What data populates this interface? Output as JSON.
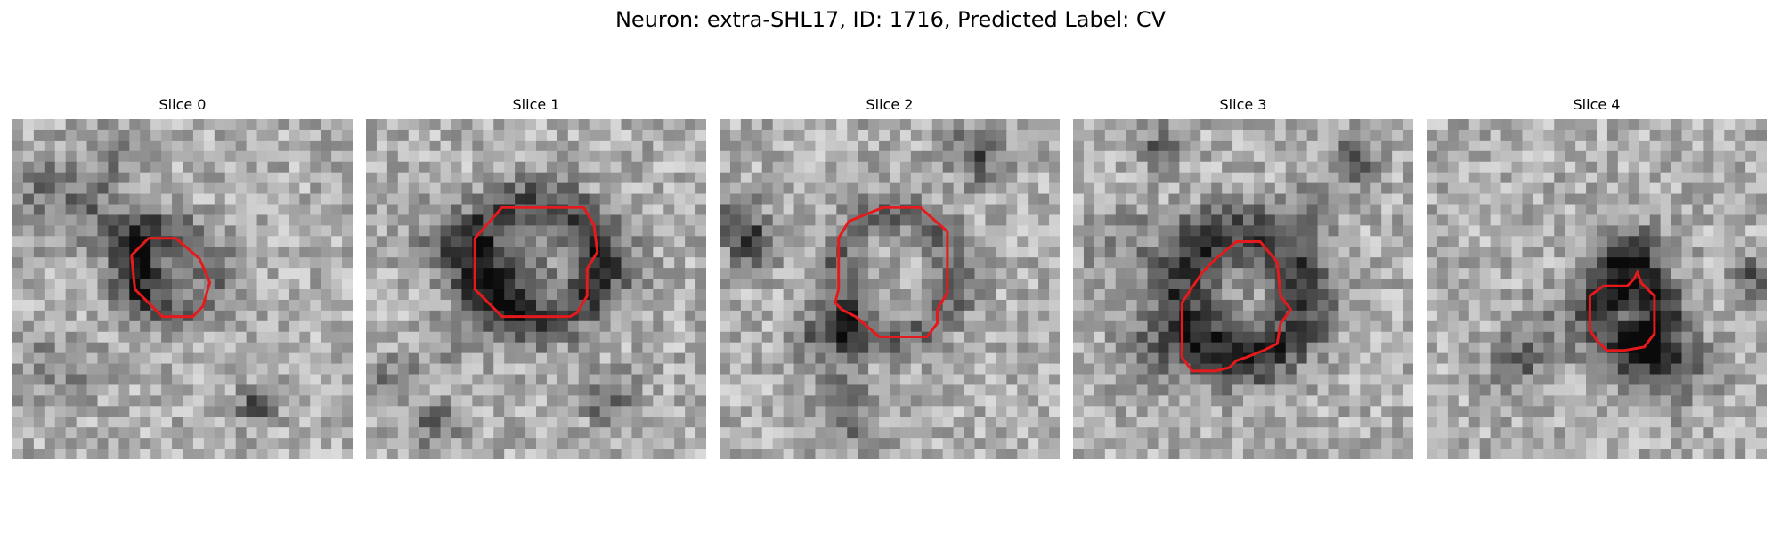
{
  "figure": {
    "title": "Neuron: extra-SHL17, ID: 1716, Predicted Label: CV",
    "contour_color": "#e41a1c"
  },
  "slices": [
    {
      "label": "Slice 0",
      "seed": 11,
      "ring_radius": 0.12,
      "ring_width": 0.06,
      "ring_darkness": 70,
      "center": [
        0.47,
        0.45
      ],
      "contour": [
        [
          0.35,
          0.4
        ],
        [
          0.4,
          0.35
        ],
        [
          0.48,
          0.35
        ],
        [
          0.55,
          0.41
        ],
        [
          0.58,
          0.48
        ],
        [
          0.56,
          0.55
        ],
        [
          0.53,
          0.58
        ],
        [
          0.44,
          0.58
        ],
        [
          0.36,
          0.5
        ]
      ]
    },
    {
      "label": "Slice 1",
      "seed": 23,
      "ring_radius": 0.18,
      "ring_width": 0.07,
      "ring_darkness": 95,
      "center": [
        0.5,
        0.42
      ],
      "contour": [
        [
          0.32,
          0.35
        ],
        [
          0.4,
          0.26
        ],
        [
          0.64,
          0.26
        ],
        [
          0.67,
          0.31
        ],
        [
          0.68,
          0.39
        ],
        [
          0.65,
          0.44
        ],
        [
          0.65,
          0.52
        ],
        [
          0.62,
          0.57
        ],
        [
          0.6,
          0.58
        ],
        [
          0.4,
          0.58
        ],
        [
          0.32,
          0.5
        ]
      ]
    },
    {
      "label": "Slice 2",
      "seed": 37,
      "ring_radius": 0.18,
      "ring_width": 0.06,
      "ring_darkness": 75,
      "center": [
        0.52,
        0.46
      ],
      "contour": [
        [
          0.35,
          0.35
        ],
        [
          0.38,
          0.3
        ],
        [
          0.43,
          0.28
        ],
        [
          0.48,
          0.26
        ],
        [
          0.59,
          0.26
        ],
        [
          0.67,
          0.33
        ],
        [
          0.67,
          0.51
        ],
        [
          0.64,
          0.56
        ],
        [
          0.64,
          0.6
        ],
        [
          0.61,
          0.64
        ],
        [
          0.47,
          0.64
        ],
        [
          0.4,
          0.58
        ],
        [
          0.36,
          0.56
        ],
        [
          0.34,
          0.54
        ],
        [
          0.35,
          0.5
        ]
      ]
    },
    {
      "label": "Slice 3",
      "seed": 53,
      "ring_radius": 0.18,
      "ring_width": 0.09,
      "ring_darkness": 110,
      "center": [
        0.5,
        0.52
      ],
      "contour": [
        [
          0.32,
          0.54
        ],
        [
          0.36,
          0.48
        ],
        [
          0.38,
          0.45
        ],
        [
          0.42,
          0.41
        ],
        [
          0.48,
          0.36
        ],
        [
          0.55,
          0.36
        ],
        [
          0.6,
          0.42
        ],
        [
          0.61,
          0.52
        ],
        [
          0.64,
          0.56
        ],
        [
          0.61,
          0.6
        ],
        [
          0.6,
          0.66
        ],
        [
          0.56,
          0.68
        ],
        [
          0.51,
          0.7
        ],
        [
          0.48,
          0.71
        ],
        [
          0.46,
          0.73
        ],
        [
          0.42,
          0.74
        ],
        [
          0.35,
          0.74
        ],
        [
          0.32,
          0.7
        ]
      ]
    },
    {
      "label": "Slice 4",
      "seed": 71,
      "ring_radius": 0.1,
      "ring_width": 0.07,
      "ring_darkness": 80,
      "center": [
        0.59,
        0.58
      ],
      "contour": [
        [
          0.48,
          0.52
        ],
        [
          0.52,
          0.49
        ],
        [
          0.59,
          0.49
        ],
        [
          0.61,
          0.47
        ],
        [
          0.62,
          0.45
        ],
        [
          0.63,
          0.48
        ],
        [
          0.67,
          0.52
        ],
        [
          0.67,
          0.63
        ],
        [
          0.64,
          0.67
        ],
        [
          0.58,
          0.68
        ],
        [
          0.53,
          0.68
        ],
        [
          0.5,
          0.65
        ],
        [
          0.48,
          0.62
        ]
      ]
    }
  ]
}
